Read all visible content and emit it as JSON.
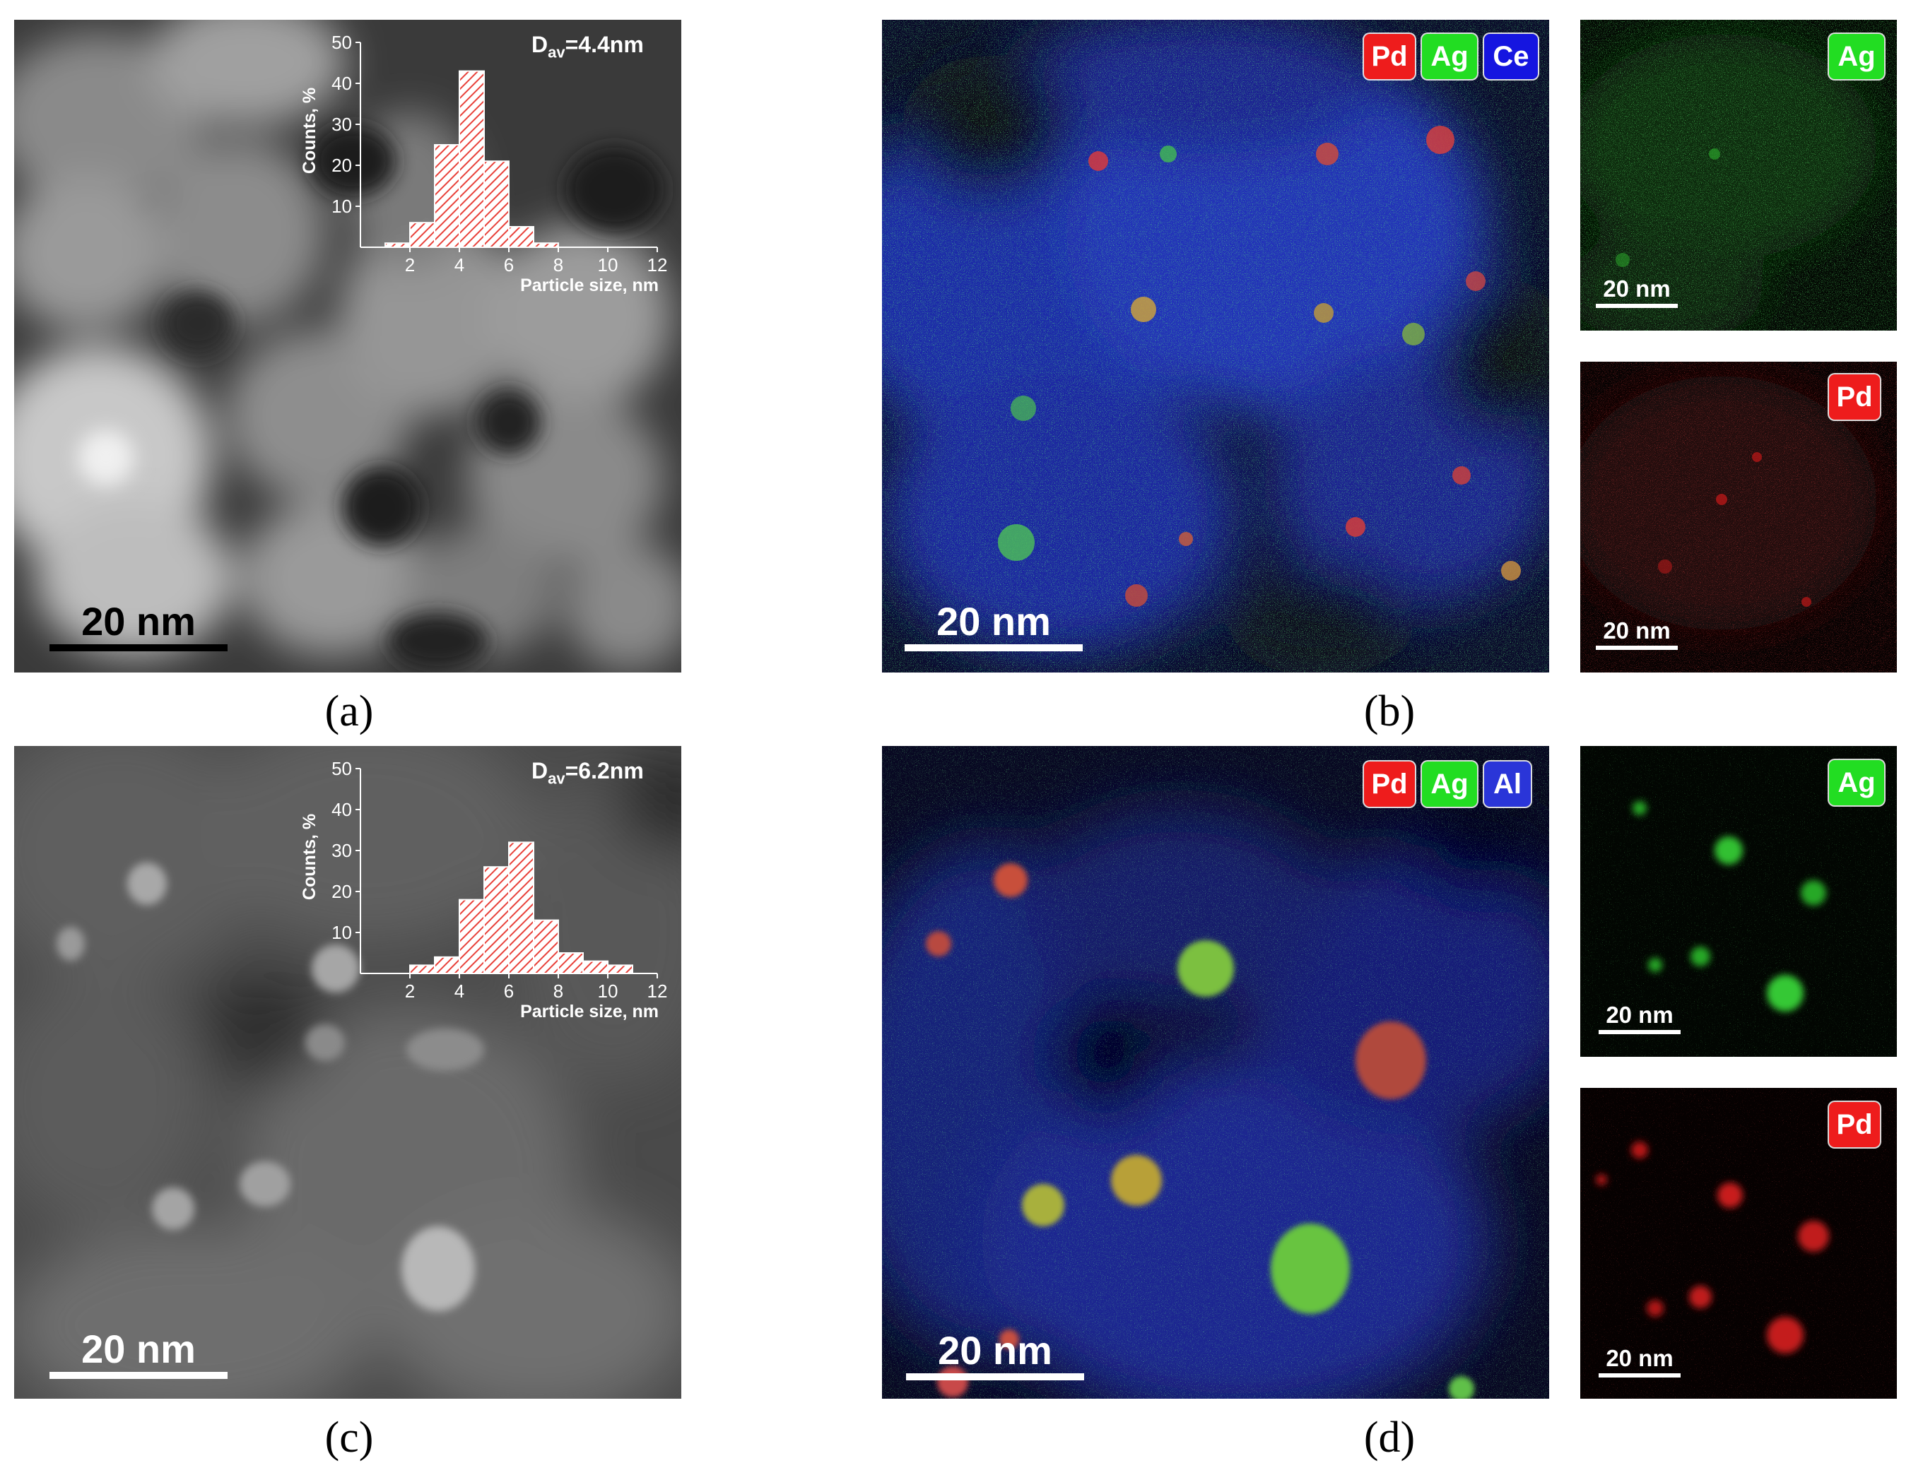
{
  "captions": {
    "a": "(a)",
    "b": "(b)",
    "c": "(c)",
    "d": "(d)"
  },
  "scale_bar_label": "20 nm",
  "colors": {
    "pd": "#ee1c1c",
    "ag": "#22dd22",
    "ce": "#1515e0",
    "al": "#2a35d8",
    "hist_fill": "#e8413a"
  },
  "panel_a": {
    "dav_main": "D",
    "dav_sub": "av",
    "dav_value": "=4.4nm"
  },
  "panel_b": {
    "tags": [
      "Pd",
      "Ag",
      "Ce"
    ],
    "side_tags": [
      "Ag",
      "Pd"
    ]
  },
  "panel_c": {
    "dav_main": "D",
    "dav_sub": "av",
    "dav_value": "=6.2nm"
  },
  "panel_d": {
    "tags": [
      "Pd",
      "Ag",
      "Al"
    ],
    "side_tags": [
      "Ag",
      "Pd"
    ]
  },
  "chart_data": [
    {
      "type": "bar",
      "panel": "a",
      "xlabel": "Particle size, nm",
      "ylabel": "Counts, %",
      "xticks": [
        2,
        4,
        6,
        8,
        10,
        12
      ],
      "yticks": [
        10,
        20,
        30,
        40,
        50
      ],
      "xlim": [
        0,
        12
      ],
      "ylim": [
        0,
        50
      ],
      "bin_width": 1,
      "x": [
        1.5,
        2.5,
        3.5,
        4.5,
        5.5,
        6.5,
        7.5
      ],
      "values": [
        1,
        6,
        25,
        43,
        21,
        5,
        1
      ]
    },
    {
      "type": "bar",
      "panel": "c",
      "xlabel": "Particle size, nm",
      "ylabel": "Counts, %",
      "xticks": [
        2,
        4,
        6,
        8,
        10,
        12
      ],
      "yticks": [
        10,
        20,
        30,
        40,
        50
      ],
      "xlim": [
        0,
        12
      ],
      "ylim": [
        0,
        50
      ],
      "bin_width": 1,
      "x": [
        2.5,
        3.5,
        4.5,
        5.5,
        6.5,
        7.5,
        8.5,
        9.5,
        10.5
      ],
      "values": [
        2,
        4,
        18,
        26,
        32,
        13,
        5,
        3,
        2
      ]
    }
  ]
}
